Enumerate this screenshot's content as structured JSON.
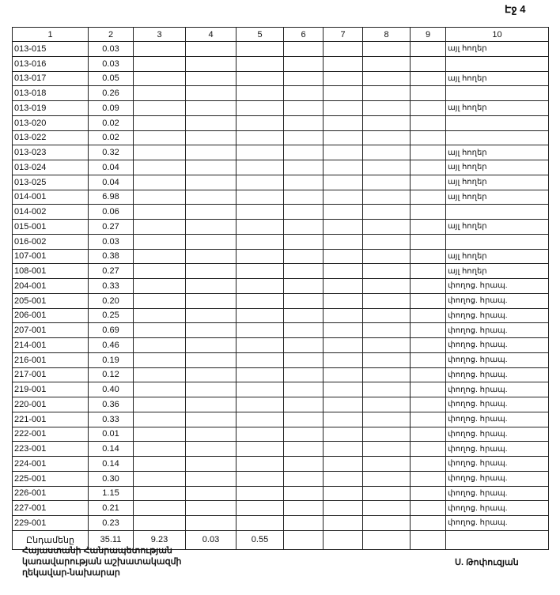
{
  "page_label": "Էջ 4",
  "columns": [
    "1",
    "2",
    "3",
    "4",
    "5",
    "6",
    "7",
    "8",
    "9",
    "10"
  ],
  "rows": [
    {
      "code": "013-015",
      "value": "0.03",
      "note": "այլ հողեր"
    },
    {
      "code": "013-016",
      "value": "0.03",
      "note": ""
    },
    {
      "code": "013-017",
      "value": "0.05",
      "note": "այլ հողեր"
    },
    {
      "code": "013-018",
      "value": "0.26",
      "note": ""
    },
    {
      "code": "013-019",
      "value": "0.09",
      "note": "այլ հողեր"
    },
    {
      "code": "013-020",
      "value": "0.02",
      "note": ""
    },
    {
      "code": "013-022",
      "value": "0.02",
      "note": ""
    },
    {
      "code": "013-023",
      "value": "0.32",
      "note": "այլ հողեր"
    },
    {
      "code": "013-024",
      "value": "0.04",
      "note": "այլ հողեր"
    },
    {
      "code": "013-025",
      "value": "0.04",
      "note": "այլ հողեր"
    },
    {
      "code": "014-001",
      "value": "6.98",
      "note": "այլ հողեր"
    },
    {
      "code": "014-002",
      "value": "0.06",
      "note": ""
    },
    {
      "code": "015-001",
      "value": "0.27",
      "note": "այլ հողեր"
    },
    {
      "code": "016-002",
      "value": "0.03",
      "note": ""
    },
    {
      "code": "107-001",
      "value": "0.38",
      "note": "այլ հողեր"
    },
    {
      "code": "108-001",
      "value": "0.27",
      "note": "այլ հողեր"
    },
    {
      "code": "204-001",
      "value": "0.33",
      "note": "փողոց. հրապ."
    },
    {
      "code": "205-001",
      "value": "0.20",
      "note": "փողոց. հրապ."
    },
    {
      "code": "206-001",
      "value": "0.25",
      "note": "փողոց. հրապ."
    },
    {
      "code": "207-001",
      "value": "0.69",
      "note": "փողոց. հրապ."
    },
    {
      "code": "214-001",
      "value": "0.46",
      "note": "փողոց. հրապ."
    },
    {
      "code": "216-001",
      "value": "0.19",
      "note": "փողոց. հրապ."
    },
    {
      "code": "217-001",
      "value": "0.12",
      "note": "փողոց. հրապ."
    },
    {
      "code": "219-001",
      "value": "0.40",
      "note": "փողոց. հրապ."
    },
    {
      "code": "220-001",
      "value": "0.36",
      "note": "փողոց. հրապ."
    },
    {
      "code": "221-001",
      "value": "0.33",
      "note": "փողոց. հրապ."
    },
    {
      "code": "222-001",
      "value": "0.01",
      "note": "փողոց. հրապ."
    },
    {
      "code": "223-001",
      "value": "0.14",
      "note": "փողոց. հրապ."
    },
    {
      "code": "224-001",
      "value": "0.14",
      "note": "փողոց. հրապ."
    },
    {
      "code": "225-001",
      "value": "0.30",
      "note": "փողոց. հրապ."
    },
    {
      "code": "226-001",
      "value": "1.15",
      "note": "փողոց. հրապ."
    },
    {
      "code": "227-001",
      "value": "0.21",
      "note": "փողոց. հրապ."
    },
    {
      "code": "229-001",
      "value": "0.23",
      "note": "փողոց. հրապ."
    }
  ],
  "total": {
    "label": "Ընդամենը",
    "col2": "35.11",
    "col3": "9.23",
    "col4": "0.03",
    "col5": "0.55"
  },
  "signature": {
    "title_lines": [
      "Հայաստանի Հանրապետության",
      "կառավարության աշխատակազմի",
      "ղեկավար-նախարար"
    ],
    "name": "Ս. Թոփուզյան"
  }
}
